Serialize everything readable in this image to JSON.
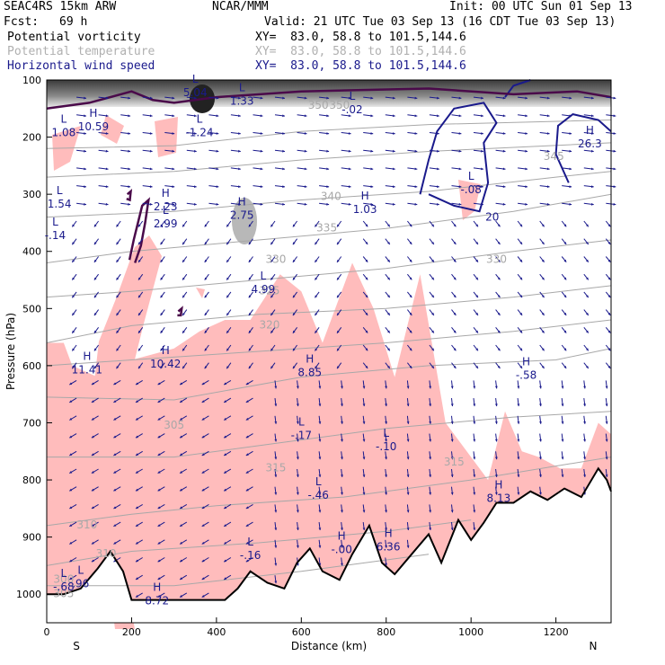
{
  "header": {
    "title": "SEAC4RS 15km ARW",
    "center": "NCAR/MMM",
    "init": "Init: 00 UTC Sun 01 Sep 13",
    "fcst_label": "Fcst:",
    "fcst_value": "69 h",
    "valid": "Valid: 21 UTC Tue 03 Sep 13 (16 CDT Tue 03 Sep 13)",
    "fields": [
      {
        "name": "Potential vorticity",
        "xy": "XY=  83.0, 58.8 to 101.5,144.6",
        "color": "#000000"
      },
      {
        "name": "Potential temperature",
        "xy": "XY=  83.0, 58.8 to 101.5,144.6",
        "color": "#b0b0b0"
      },
      {
        "name": "Horizontal wind speed",
        "xy": "XY=  83.0, 58.8 to 101.5,144.6",
        "color": "#1a1a8c"
      }
    ]
  },
  "chart_data": {
    "type": "cross-section",
    "xlabel": "Distance (km)",
    "ylabel": "Pressure (hPa)",
    "xlim": [
      0,
      1330
    ],
    "ylim": [
      1050,
      100
    ],
    "x_ticks": [
      0,
      200,
      400,
      600,
      800,
      1000,
      1200
    ],
    "y_ticks": [
      100,
      200,
      300,
      400,
      500,
      600,
      700,
      800,
      900,
      1000
    ],
    "end_labels": {
      "left": "S",
      "right": "N"
    },
    "terrain": [
      [
        0,
        1000
      ],
      [
        40,
        1000
      ],
      [
        80,
        990
      ],
      [
        120,
        955
      ],
      [
        150,
        925
      ],
      [
        180,
        960
      ],
      [
        200,
        1010
      ],
      [
        300,
        1010
      ],
      [
        420,
        1010
      ],
      [
        450,
        990
      ],
      [
        480,
        960
      ],
      [
        520,
        980
      ],
      [
        560,
        990
      ],
      [
        590,
        945
      ],
      [
        620,
        920
      ],
      [
        650,
        960
      ],
      [
        690,
        975
      ],
      [
        720,
        930
      ],
      [
        760,
        880
      ],
      [
        790,
        945
      ],
      [
        820,
        965
      ],
      [
        860,
        930
      ],
      [
        900,
        895
      ],
      [
        930,
        945
      ],
      [
        970,
        870
      ],
      [
        1000,
        905
      ],
      [
        1030,
        875
      ],
      [
        1060,
        840
      ],
      [
        1100,
        840
      ],
      [
        1140,
        820
      ],
      [
        1180,
        835
      ],
      [
        1220,
        815
      ],
      [
        1260,
        830
      ],
      [
        1300,
        780
      ],
      [
        1320,
        800
      ],
      [
        1330,
        820
      ]
    ],
    "theta_labels": [
      "350",
      "350",
      "345",
      "340",
      "335",
      "330",
      "330",
      "325",
      "320",
      "315",
      "315",
      "310",
      "310",
      "305",
      "305",
      "300"
    ],
    "hl_labels": [
      {
        "kind": "L",
        "value": "1.33"
      },
      {
        "kind": "L",
        "value": "5.04"
      },
      {
        "kind": "L",
        "value": "-.02"
      },
      {
        "kind": "H",
        "value": "10.59"
      },
      {
        "kind": "L",
        "value": "1.08"
      },
      {
        "kind": "L",
        "value": "-1.24"
      },
      {
        "kind": "H",
        "value": "26.3"
      },
      {
        "kind": "L",
        "value": "-.08"
      },
      {
        "kind": "L",
        "value": "1.54"
      },
      {
        "kind": "H",
        "value": "2.23"
      },
      {
        "kind": "H",
        "value": "2.75"
      },
      {
        "kind": "H",
        "value": "1.03"
      },
      {
        "kind": "L",
        "value": "2.99"
      },
      {
        "kind": "L",
        "value": "-.14"
      },
      {
        "kind": "L",
        "value": "4.99"
      },
      {
        "kind": "H",
        "value": "11.41"
      },
      {
        "kind": "H",
        "value": "10.42"
      },
      {
        "kind": "H",
        "value": "8.85"
      },
      {
        "kind": "H",
        "value": "-.58"
      },
      {
        "kind": "L",
        "value": "-.17"
      },
      {
        "kind": "L",
        "value": "-.10"
      },
      {
        "kind": "L",
        "value": "-.46"
      },
      {
        "kind": "H",
        "value": "8.13"
      },
      {
        "kind": "H",
        "value": "-.00"
      },
      {
        "kind": "H",
        "value": "6.36"
      },
      {
        "kind": "L",
        "value": "-.16"
      },
      {
        "kind": "L",
        "value": "-.68"
      },
      {
        "kind": "L",
        "value": ".96"
      },
      {
        "kind": "H",
        "value": "8.72"
      }
    ],
    "wind_labels": [
      "20"
    ]
  }
}
